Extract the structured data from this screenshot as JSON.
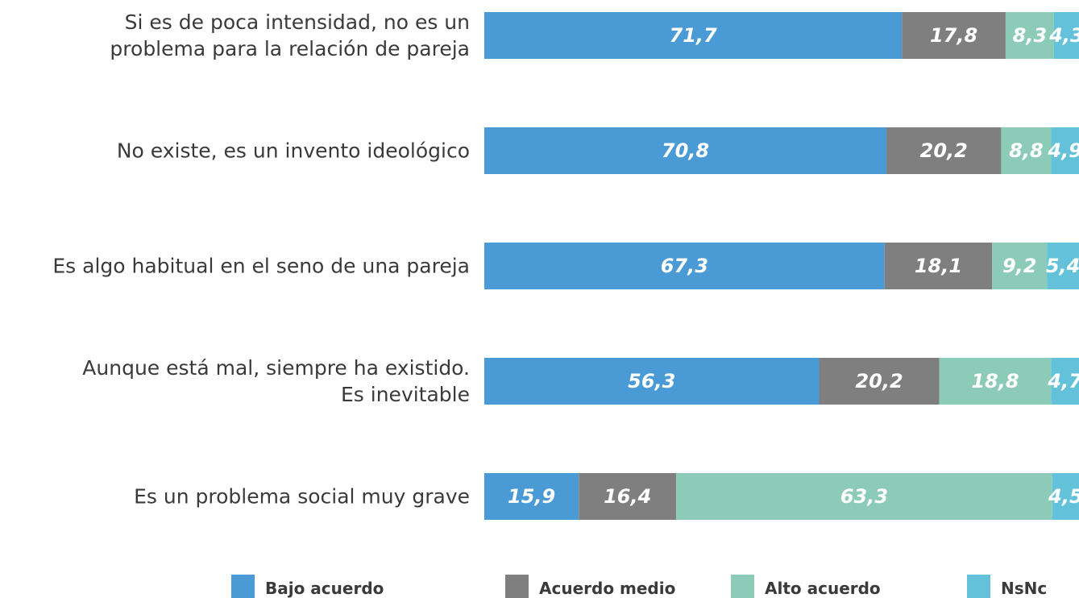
{
  "chart_data": {
    "type": "stacked-bar-horizontal",
    "categories": [
      "Si es de poca intensidad, no es un\nproblema para la relación de pareja",
      "No existe, es un invento ideológico",
      "Es algo habitual en el seno de una pareja",
      "Aunque está mal, siempre ha existido.\nEs inevitable",
      "Es un problema social muy grave"
    ],
    "series": [
      {
        "name": "Bajo acuerdo",
        "color": "#4a9ad6",
        "values": [
          71.7,
          70.8,
          67.3,
          56.3,
          15.9
        ],
        "value_labels": [
          "71,7",
          "70,8",
          "67,3",
          "56,3",
          "15,9"
        ]
      },
      {
        "name": "Acuerdo medio",
        "color": "#7f7f7f",
        "values": [
          17.8,
          20.2,
          18.1,
          20.2,
          16.4
        ],
        "value_labels": [
          "17,8",
          "20,2",
          "18,1",
          "20,2",
          "16,4"
        ]
      },
      {
        "name": "Alto acuerdo",
        "color": "#8ccbb7",
        "values": [
          8.3,
          8.8,
          9.2,
          18.8,
          63.3
        ],
        "value_labels": [
          "8,3",
          "8,8",
          "9,2",
          "18,8",
          "63,3"
        ]
      },
      {
        "name": "NsNc",
        "color": "#63c2d9",
        "values": [
          4.3,
          4.9,
          5.4,
          4.7,
          4.5
        ],
        "value_labels": [
          "4,3",
          "4,9",
          "5,4",
          "4,7",
          "4,5"
        ]
      }
    ]
  }
}
